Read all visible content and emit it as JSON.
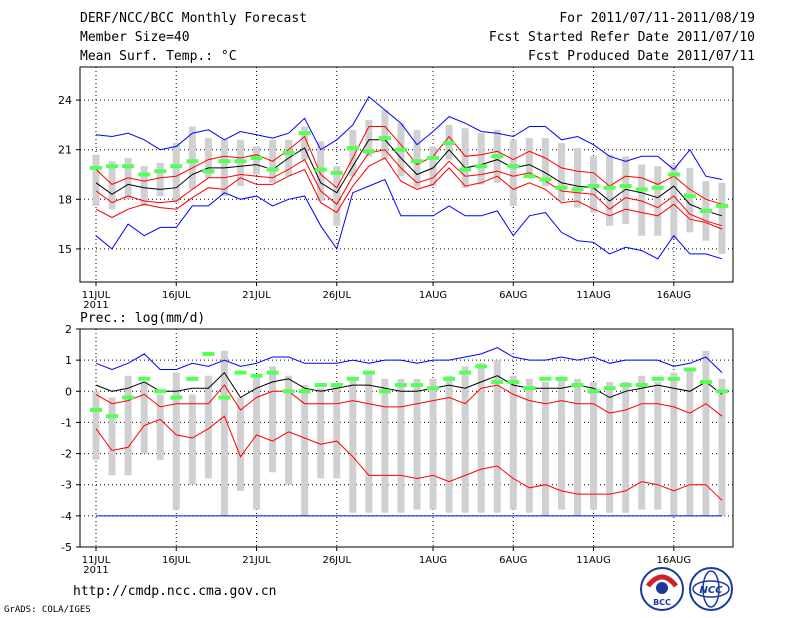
{
  "header": {
    "title": "DERF/NCC/BCC Monthly Forecast",
    "member_size": "Member Size=40",
    "variable": "Mean Surf. Temp.: °C",
    "period": "For 2011/07/11-2011/08/19",
    "start_date": "Fcst Started Refer Date 2011/07/10",
    "produced_date": "Fcst Produced Date 2011/07/11"
  },
  "footer": {
    "url": "http://cmdp.ncc.cma.gov.cn",
    "credit": "GrADS: COLA/IGES"
  },
  "logos": [
    "BCC",
    "NCC"
  ],
  "colors": {
    "envelope": "#0000ff",
    "spread": "#ff0000",
    "mean": "#000000",
    "obs": "#55ff55",
    "box": "#d0d0d0"
  },
  "chart_data": [
    {
      "type": "line",
      "title": "Mean Surf. Temp.: °C",
      "ylim": [
        13,
        26
      ],
      "yticks": [
        15,
        18,
        21,
        24
      ],
      "xtick_labels": [
        "11JUL",
        "16JUL",
        "21JUL",
        "26JUL",
        "1AUG",
        "6AUG",
        "11AUG",
        "16AUG"
      ],
      "xtick_days": [
        0,
        5,
        10,
        15,
        21,
        26,
        31,
        36
      ],
      "year_label": "2011",
      "days": 40,
      "series": [
        {
          "name": "max",
          "color": "#0000ff",
          "values": [
            21.9,
            21.8,
            22.0,
            21.6,
            21.0,
            21.2,
            22.0,
            22.2,
            21.6,
            22.1,
            21.9,
            21.7,
            22.0,
            22.9,
            21.0,
            21.6,
            22.5,
            24.2,
            23.4,
            22.6,
            21.3,
            22.1,
            23.0,
            22.6,
            22.1,
            22.0,
            21.8,
            22.4,
            22.4,
            21.6,
            21.8,
            21.3,
            20.6,
            20.3,
            20.6,
            20.6,
            19.8,
            21.0,
            19.4,
            19.2
          ]
        },
        {
          "name": "upper",
          "color": "#ff0000",
          "values": [
            19.8,
            18.9,
            19.3,
            19.1,
            19.3,
            19.4,
            19.9,
            20.4,
            20.6,
            20.5,
            20.7,
            20.3,
            21.0,
            21.8,
            19.5,
            18.7,
            20.5,
            22.4,
            22.4,
            21.3,
            20.1,
            20.6,
            21.8,
            20.6,
            20.7,
            20.9,
            20.4,
            20.9,
            20.5,
            19.9,
            19.7,
            19.6,
            18.8,
            19.4,
            19.3,
            18.9,
            19.4,
            18.6,
            18.0,
            17.7
          ]
        },
        {
          "name": "mean",
          "color": "#000000",
          "values": [
            19.0,
            18.3,
            18.9,
            18.7,
            18.6,
            18.7,
            19.5,
            19.9,
            19.9,
            20.0,
            20.1,
            19.8,
            20.5,
            21.1,
            19.0,
            18.4,
            20.0,
            21.6,
            21.6,
            20.5,
            19.5,
            19.9,
            21.0,
            19.9,
            20.1,
            20.4,
            19.9,
            20.1,
            19.6,
            19.0,
            18.8,
            18.7,
            17.9,
            18.6,
            18.4,
            18.1,
            18.8,
            17.7,
            17.3,
            17.0
          ]
        },
        {
          "name": "lower",
          "color": "#ff0000",
          "values": [
            18.5,
            17.8,
            18.2,
            17.9,
            17.8,
            17.9,
            18.6,
            19.3,
            19.3,
            19.5,
            19.4,
            19.3,
            19.8,
            20.4,
            18.5,
            17.7,
            19.4,
            20.8,
            21.0,
            19.9,
            19.0,
            19.3,
            20.3,
            19.4,
            19.5,
            19.7,
            19.4,
            19.6,
            19.1,
            18.5,
            18.4,
            18.3,
            17.4,
            18.1,
            17.9,
            17.5,
            18.2,
            17.1,
            16.7,
            16.4
          ]
        },
        {
          "name": "lowest",
          "color": "#ff0000",
          "values": [
            17.4,
            16.9,
            17.4,
            17.7,
            17.5,
            17.4,
            18.1,
            18.7,
            18.6,
            19.3,
            18.9,
            18.9,
            19.4,
            19.8,
            17.8,
            17.2,
            18.8,
            20.0,
            20.5,
            19.1,
            18.6,
            18.9,
            19.9,
            18.8,
            19.0,
            19.4,
            18.6,
            19.0,
            18.6,
            17.8,
            17.9,
            17.4,
            17.0,
            17.4,
            17.2,
            17.0,
            17.7,
            16.8,
            16.6,
            16.2
          ]
        },
        {
          "name": "min",
          "color": "#0000ff",
          "values": [
            15.8,
            15.0,
            16.5,
            15.8,
            16.3,
            16.3,
            17.6,
            17.6,
            18.4,
            18.0,
            18.2,
            17.6,
            18.0,
            18.2,
            16.4,
            15.0,
            18.4,
            18.8,
            19.2,
            17.0,
            17.0,
            17.0,
            17.6,
            17.0,
            17.0,
            17.3,
            15.8,
            17.0,
            17.2,
            16.0,
            15.5,
            15.4,
            14.7,
            15.1,
            14.9,
            14.4,
            15.8,
            14.7,
            14.7,
            14.4
          ]
        }
      ],
      "boxes": [
        [
          17.6,
          20.7
        ],
        [
          17.4,
          20.3
        ],
        [
          18.0,
          20.5
        ],
        [
          17.6,
          20.0
        ],
        [
          18.2,
          20.2
        ],
        [
          17.8,
          21.4
        ],
        [
          18.6,
          22.4
        ],
        [
          19.3,
          21.7
        ],
        [
          18.2,
          21.6
        ],
        [
          18.8,
          21.6
        ],
        [
          19.5,
          21.2
        ],
        [
          19.0,
          21.6
        ],
        [
          19.4,
          21.6
        ],
        [
          20.4,
          22.4
        ],
        [
          17.9,
          21.5
        ],
        [
          16.4,
          20.0
        ],
        [
          19.4,
          22.2
        ],
        [
          20.6,
          22.8
        ],
        [
          20.4,
          23.4
        ],
        [
          19.4,
          22.6
        ],
        [
          18.7,
          22.2
        ],
        [
          18.8,
          21.2
        ],
        [
          20.4,
          22.5
        ],
        [
          18.7,
          22.3
        ],
        [
          18.9,
          22.0
        ],
        [
          19.0,
          22.2
        ],
        [
          17.6,
          21.6
        ],
        [
          19.5,
          21.7
        ],
        [
          18.8,
          21.7
        ],
        [
          17.9,
          21.4
        ],
        [
          17.5,
          21.1
        ],
        [
          17.2,
          20.6
        ],
        [
          16.4,
          20.7
        ],
        [
          16.5,
          20.6
        ],
        [
          15.8,
          20.1
        ],
        [
          15.8,
          20.0
        ],
        [
          15.6,
          20.1
        ],
        [
          16.0,
          19.9
        ],
        [
          15.5,
          19.1
        ],
        [
          14.7,
          19.0
        ]
      ],
      "obs": [
        19.9,
        20.0,
        20.0,
        19.5,
        19.7,
        20.0,
        20.3,
        19.7,
        20.3,
        20.3,
        20.5,
        19.8,
        20.8,
        22.0,
        19.8,
        19.6,
        21.1,
        20.9,
        21.7,
        21.0,
        20.3,
        20.5,
        21.4,
        19.8,
        20.0,
        20.6,
        20.0,
        19.4,
        19.2,
        18.7,
        18.6,
        18.8,
        18.7,
        18.8,
        18.6,
        18.7,
        19.5,
        18.2,
        17.3,
        17.6
      ]
    },
    {
      "type": "line",
      "title": "Prec.: log(mm/d)",
      "ylim": [
        -5,
        2
      ],
      "yticks": [
        -5,
        -4,
        -3,
        -2,
        -1,
        0,
        1,
        2
      ],
      "xtick_labels": [
        "11JUL",
        "16JUL",
        "21JUL",
        "26JUL",
        "1AUG",
        "6AUG",
        "11AUG",
        "16AUG"
      ],
      "xtick_days": [
        0,
        5,
        10,
        15,
        21,
        26,
        31,
        36
      ],
      "year_label": "2011",
      "days": 40,
      "series": [
        {
          "name": "max",
          "color": "#0000ff",
          "values": [
            0.9,
            0.7,
            0.9,
            1.2,
            0.7,
            0.7,
            0.9,
            0.8,
            1.0,
            0.8,
            0.9,
            1.1,
            1.1,
            0.9,
            0.9,
            0.9,
            1.0,
            0.9,
            1.0,
            1.0,
            0.9,
            1.0,
            1.0,
            1.1,
            1.2,
            1.4,
            1.1,
            1.0,
            1.0,
            1.1,
            1.0,
            1.1,
            0.9,
            1.0,
            1.0,
            1.0,
            0.8,
            0.9,
            1.1,
            0.6
          ]
        },
        {
          "name": "mean",
          "color": "#000000",
          "values": [
            0.2,
            0.0,
            0.1,
            0.3,
            0.0,
            0.0,
            0.1,
            0.1,
            0.6,
            -0.2,
            0.1,
            0.3,
            0.4,
            0.1,
            0.0,
            0.1,
            0.2,
            0.2,
            0.1,
            0.0,
            0.0,
            0.1,
            0.2,
            0.1,
            0.3,
            0.5,
            0.2,
            0.1,
            0.1,
            0.1,
            0.2,
            0.1,
            -0.2,
            0.0,
            0.1,
            0.2,
            0.1,
            0.0,
            0.3,
            -0.1
          ]
        },
        {
          "name": "upper",
          "color": "#ff0000",
          "values": [
            -0.1,
            -0.4,
            -0.3,
            -0.1,
            -0.5,
            -0.4,
            -0.4,
            -0.4,
            0.2,
            -0.6,
            -0.2,
            0.0,
            0.0,
            -0.4,
            -0.4,
            -0.4,
            -0.3,
            -0.4,
            -0.5,
            -0.5,
            -0.4,
            -0.3,
            -0.2,
            -0.4,
            0.1,
            0.2,
            -0.1,
            -0.3,
            -0.4,
            -0.3,
            -0.4,
            -0.4,
            -0.7,
            -0.6,
            -0.4,
            -0.4,
            -0.5,
            -0.7,
            -0.4,
            -0.8
          ]
        },
        {
          "name": "lower",
          "color": "#ff0000",
          "values": [
            -1.2,
            -1.9,
            -1.8,
            -1.1,
            -0.9,
            -1.4,
            -1.5,
            -1.2,
            -0.8,
            -2.1,
            -1.4,
            -1.6,
            -1.3,
            -1.5,
            -1.7,
            -1.6,
            -2.1,
            -2.7,
            -2.7,
            -2.7,
            -2.8,
            -2.7,
            -2.9,
            -2.7,
            -2.5,
            -2.4,
            -2.8,
            -3.1,
            -3.0,
            -3.2,
            -3.3,
            -3.3,
            -3.3,
            -3.2,
            -2.9,
            -3.0,
            -3.2,
            -3.0,
            -3.0,
            -3.5
          ]
        },
        {
          "name": "min",
          "color": "#0000ff",
          "values": [
            -4,
            -4,
            -4,
            -4,
            -4,
            -4,
            -4,
            -4,
            -4,
            -4,
            -4,
            -4,
            -4,
            -4,
            -4,
            -4,
            -4,
            -4,
            -4,
            -4,
            -4,
            -4,
            -4,
            -4,
            -4,
            -4,
            -4,
            -4,
            -4,
            -4,
            -4,
            -4,
            -4,
            -4,
            -4,
            -4,
            -4,
            -4,
            -4,
            -4
          ]
        }
      ],
      "boxes": [
        [
          -2.2,
          0.0
        ],
        [
          -2.7,
          -0.2
        ],
        [
          -2.7,
          0.5
        ],
        [
          -2.0,
          0.3
        ],
        [
          -2.2,
          -0.1
        ],
        [
          -3.8,
          0.6
        ],
        [
          -3.0,
          -0.1
        ],
        [
          -2.8,
          0.5
        ],
        [
          -4.0,
          1.3
        ],
        [
          -3.2,
          -0.2
        ],
        [
          -3.8,
          0.5
        ],
        [
          -2.6,
          0.8
        ],
        [
          -3.0,
          0.5
        ],
        [
          -4.0,
          0.2
        ],
        [
          -2.8,
          0.1
        ],
        [
          -2.8,
          0.2
        ],
        [
          -3.9,
          0.4
        ],
        [
          -3.9,
          0.6
        ],
        [
          -3.9,
          0.4
        ],
        [
          -3.9,
          0.4
        ],
        [
          -3.8,
          0.4
        ],
        [
          -3.8,
          0.4
        ],
        [
          -3.9,
          0.5
        ],
        [
          -3.9,
          0.8
        ],
        [
          -3.9,
          0.9
        ],
        [
          -3.9,
          1.0
        ],
        [
          -3.8,
          0.5
        ],
        [
          -3.9,
          0.4
        ],
        [
          -4.0,
          0.3
        ],
        [
          -3.8,
          0.4
        ],
        [
          -4.0,
          0.4
        ],
        [
          -3.8,
          0.3
        ],
        [
          -3.9,
          0.3
        ],
        [
          -3.9,
          0.3
        ],
        [
          -3.8,
          0.5
        ],
        [
          -3.8,
          0.3
        ],
        [
          -4.0,
          0.6
        ],
        [
          -4.0,
          0.7
        ],
        [
          -4.0,
          1.3
        ],
        [
          -4.0,
          0.4
        ]
      ],
      "obs": [
        -0.6,
        -0.8,
        -0.2,
        0.4,
        0.0,
        -0.2,
        0.4,
        1.2,
        -0.2,
        0.6,
        0.5,
        0.6,
        0.0,
        0.0,
        0.2,
        0.2,
        0.4,
        0.6,
        0.0,
        0.2,
        0.2,
        0.1,
        0.4,
        0.6,
        0.8,
        0.3,
        0.3,
        0.1,
        0.4,
        0.4,
        0.2,
        0.0,
        0.1,
        0.2,
        0.2,
        0.4,
        0.4,
        0.7,
        0.3,
        0.0
      ]
    }
  ]
}
